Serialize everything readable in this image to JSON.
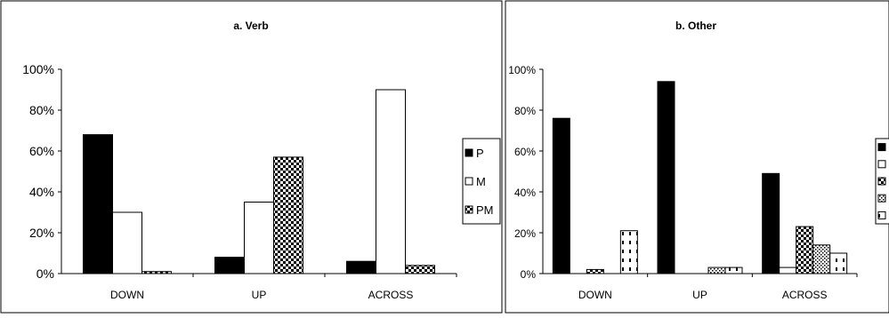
{
  "chart_data": [
    {
      "type": "bar",
      "title": "a. Verb",
      "categories": [
        "DOWN",
        "UP",
        "ACROSS"
      ],
      "ylim": [
        0,
        100
      ],
      "yticks": [
        "0%",
        "20%",
        "40%",
        "60%",
        "80%",
        "100%"
      ],
      "grid": false,
      "legend_position": "right",
      "series": [
        {
          "name": "P",
          "pattern": "solid-black",
          "values": [
            68,
            8,
            6
          ]
        },
        {
          "name": "M",
          "pattern": "white",
          "values": [
            30,
            35,
            90
          ]
        },
        {
          "name": "PM",
          "pattern": "checker",
          "values": [
            1,
            57,
            4
          ]
        }
      ]
    },
    {
      "type": "bar",
      "title": "b. Other",
      "categories": [
        "DOWN",
        "UP",
        "ACROSS"
      ],
      "ylim": [
        0,
        100
      ],
      "yticks": [
        "0%",
        "20%",
        "40%",
        "60%",
        "80%",
        "100%"
      ],
      "grid": false,
      "legend_position": "right",
      "series": [
        {
          "name": "",
          "pattern": "solid-black",
          "values": [
            76,
            94,
            49
          ]
        },
        {
          "name": "",
          "pattern": "white",
          "values": [
            0,
            0,
            3
          ]
        },
        {
          "name": "",
          "pattern": "checker",
          "values": [
            2,
            0,
            23
          ]
        },
        {
          "name": "",
          "pattern": "dots",
          "values": [
            0,
            3,
            14
          ]
        },
        {
          "name": "",
          "pattern": "dashes",
          "values": [
            21,
            3,
            10
          ]
        }
      ]
    }
  ]
}
